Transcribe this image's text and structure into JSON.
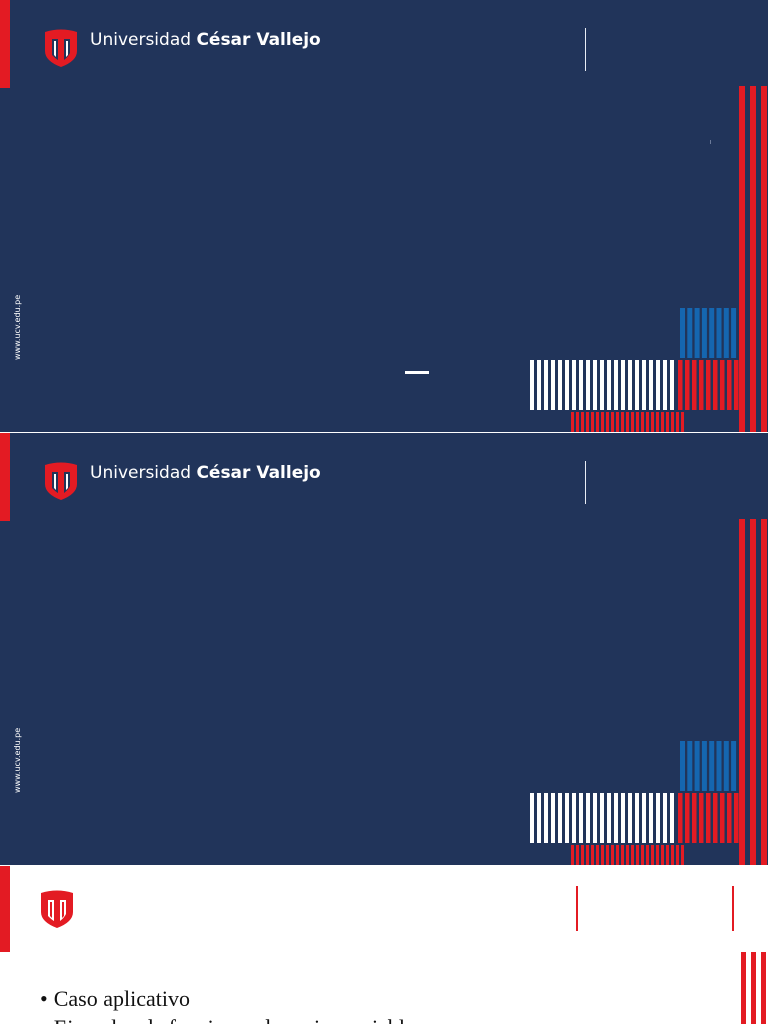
{
  "colors": {
    "navy": "#21345a",
    "red": "#e31b23",
    "blue": "#1566b0",
    "white": "#ffffff",
    "line": "#e8ecf4"
  },
  "brand": {
    "prefix": "Universidad ",
    "name": "César Vallejo"
  },
  "url": "www.ucv.edu.pe",
  "slides": [
    {
      "type": "title"
    },
    {
      "type": "title"
    },
    {
      "type": "content",
      "bullets": [
        "Caso aplicativo",
        "Ejemplos de funciones de varias variables"
      ]
    }
  ]
}
